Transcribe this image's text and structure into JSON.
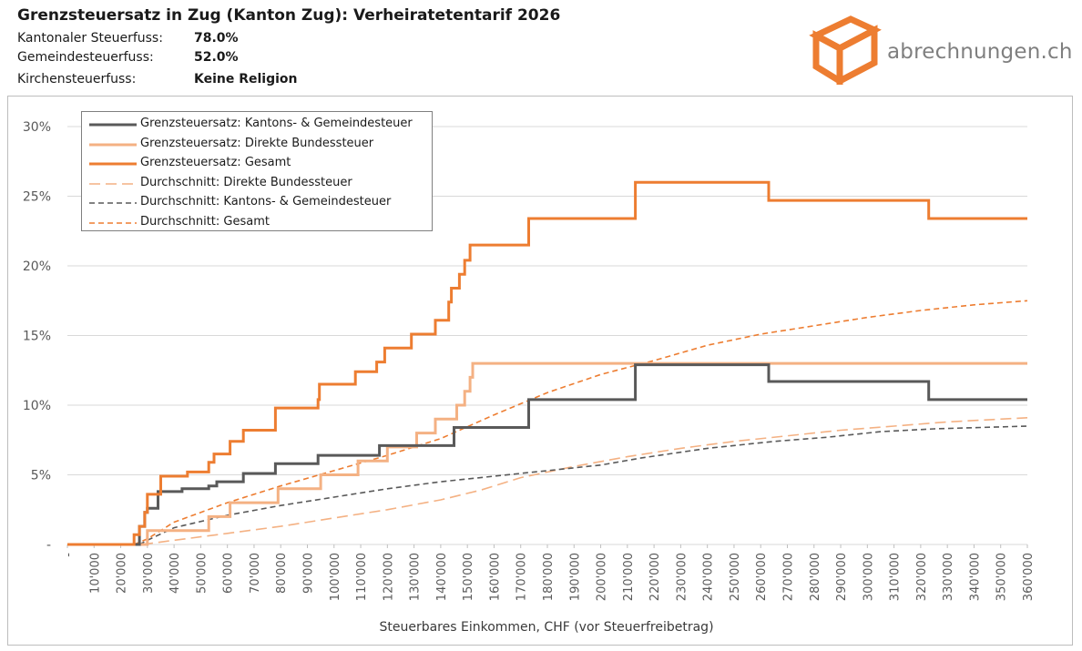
{
  "header": {
    "title": "Grenzsteuersatz in Zug (Kanton Zug): Verheiratetentarif 2026",
    "rows": [
      {
        "label": "Kantonaler Steuerfuss:",
        "value": "78.0%"
      },
      {
        "label": "Gemeindesteuerfuss:",
        "value": "52.0%"
      },
      {
        "label": "Kirchensteuerfuss:",
        "value": "Keine Religion"
      }
    ]
  },
  "logo": {
    "text": "abrechnungen.ch",
    "color": "#ED7D31"
  },
  "chart_data": {
    "type": "line",
    "xlabel": "Steuerbares Einkommen, CHF (vor Steuerfreibetrag)",
    "ylabel": "",
    "xlim": [
      0,
      360000
    ],
    "ylim": [
      0,
      30
    ],
    "y_ticks": [
      {
        "value": 0,
        "label": "-"
      },
      {
        "value": 5,
        "label": "5%"
      },
      {
        "value": 10,
        "label": "10%"
      },
      {
        "value": 15,
        "label": "15%"
      },
      {
        "value": 20,
        "label": "20%"
      },
      {
        "value": 25,
        "label": "25%"
      },
      {
        "value": 30,
        "label": "30%"
      }
    ],
    "x_ticks": [
      {
        "value": 0,
        "label": "-"
      },
      {
        "value": 10000,
        "label": "10'000"
      },
      {
        "value": 20000,
        "label": "20'000"
      },
      {
        "value": 30000,
        "label": "30'000"
      },
      {
        "value": 40000,
        "label": "40'000"
      },
      {
        "value": 50000,
        "label": "50'000"
      },
      {
        "value": 60000,
        "label": "60'000"
      },
      {
        "value": 70000,
        "label": "70'000"
      },
      {
        "value": 80000,
        "label": "80'000"
      },
      {
        "value": 90000,
        "label": "90'000"
      },
      {
        "value": 100000,
        "label": "100'000"
      },
      {
        "value": 110000,
        "label": "110'000"
      },
      {
        "value": 120000,
        "label": "120'000"
      },
      {
        "value": 130000,
        "label": "130'000"
      },
      {
        "value": 140000,
        "label": "140'000"
      },
      {
        "value": 150000,
        "label": "150'000"
      },
      {
        "value": 160000,
        "label": "160'000"
      },
      {
        "value": 170000,
        "label": "170'000"
      },
      {
        "value": 180000,
        "label": "180'000"
      },
      {
        "value": 190000,
        "label": "190'000"
      },
      {
        "value": 200000,
        "label": "200'000"
      },
      {
        "value": 210000,
        "label": "210'000"
      },
      {
        "value": 220000,
        "label": "220'000"
      },
      {
        "value": 230000,
        "label": "230'000"
      },
      {
        "value": 240000,
        "label": "240'000"
      },
      {
        "value": 250000,
        "label": "250'000"
      },
      {
        "value": 260000,
        "label": "260'000"
      },
      {
        "value": 270000,
        "label": "270'000"
      },
      {
        "value": 280000,
        "label": "280'000"
      },
      {
        "value": 290000,
        "label": "290'000"
      },
      {
        "value": 300000,
        "label": "300'000"
      },
      {
        "value": 310000,
        "label": "310'000"
      },
      {
        "value": 320000,
        "label": "320'000"
      },
      {
        "value": 330000,
        "label": "330'000"
      },
      {
        "value": 340000,
        "label": "340'000"
      },
      {
        "value": 350000,
        "label": "350'000"
      },
      {
        "value": 360000,
        "label": "360'000"
      }
    ],
    "grid": "horizontal",
    "legend_position": "top-left",
    "series": [
      {
        "name": "Grenzsteuersatz: Kantons- & Gemeindesteuer",
        "color": "#595959",
        "style": "solid",
        "width": 3,
        "step": true,
        "points": [
          [
            0,
            0
          ],
          [
            26000,
            0
          ],
          [
            27000,
            1.3
          ],
          [
            29000,
            2.3
          ],
          [
            30000,
            2.6
          ],
          [
            33000,
            2.6
          ],
          [
            34000,
            3.8
          ],
          [
            43000,
            4.0
          ],
          [
            53000,
            4.2
          ],
          [
            56000,
            4.5
          ],
          [
            66000,
            5.1
          ],
          [
            78000,
            5.8
          ],
          [
            94000,
            6.4
          ],
          [
            117000,
            7.1
          ],
          [
            131000,
            7.1
          ],
          [
            143000,
            7.1
          ],
          [
            145000,
            8.4
          ],
          [
            173000,
            10.4
          ],
          [
            213000,
            12.9
          ],
          [
            263000,
            11.7
          ],
          [
            323000,
            10.4
          ],
          [
            360000,
            10.4
          ]
        ]
      },
      {
        "name": "Grenzsteuersatz: Direkte Bundessteuer",
        "color": "#F4B183",
        "style": "solid",
        "width": 3,
        "step": true,
        "points": [
          [
            0,
            0
          ],
          [
            29000,
            0
          ],
          [
            30000,
            1.0
          ],
          [
            53000,
            2.0
          ],
          [
            61000,
            3.0
          ],
          [
            79000,
            4.0
          ],
          [
            95000,
            5.0
          ],
          [
            109000,
            6.0
          ],
          [
            120000,
            7.0
          ],
          [
            131000,
            8.0
          ],
          [
            138000,
            9.0
          ],
          [
            146000,
            10.0
          ],
          [
            149000,
            11.0
          ],
          [
            151000,
            12.0
          ],
          [
            152000,
            13.0
          ],
          [
            360000,
            13.0
          ]
        ]
      },
      {
        "name": "Grenzsteuersatz: Gesamt",
        "color": "#ED7D31",
        "style": "solid",
        "width": 3,
        "step": true,
        "points": [
          [
            0,
            0
          ],
          [
            24000,
            0
          ],
          [
            25000,
            0.7
          ],
          [
            27000,
            1.3
          ],
          [
            29000,
            2.3
          ],
          [
            30000,
            3.6
          ],
          [
            35000,
            4.9
          ],
          [
            45000,
            5.2
          ],
          [
            53000,
            5.9
          ],
          [
            55000,
            6.5
          ],
          [
            61000,
            7.4
          ],
          [
            66000,
            8.2
          ],
          [
            78000,
            9.8
          ],
          [
            94000,
            10.4
          ],
          [
            94500,
            11.5
          ],
          [
            108000,
            12.4
          ],
          [
            116000,
            13.1
          ],
          [
            119000,
            14.1
          ],
          [
            129000,
            15.1
          ],
          [
            138000,
            16.1
          ],
          [
            143000,
            17.4
          ],
          [
            144000,
            18.4
          ],
          [
            147000,
            19.4
          ],
          [
            149000,
            20.4
          ],
          [
            151000,
            21.5
          ],
          [
            173000,
            23.4
          ],
          [
            213000,
            26.0
          ],
          [
            263000,
            24.7
          ],
          [
            323000,
            23.4
          ],
          [
            360000,
            23.4
          ]
        ]
      },
      {
        "name": "Durchschnitt: Direkte Bundessteuer",
        "color": "#F4B183",
        "style": "longdash",
        "width": 1.6,
        "step": false,
        "points": [
          [
            28000,
            0
          ],
          [
            40000,
            0.3
          ],
          [
            60000,
            0.8
          ],
          [
            80000,
            1.3
          ],
          [
            100000,
            1.9
          ],
          [
            120000,
            2.5
          ],
          [
            140000,
            3.2
          ],
          [
            155000,
            3.9
          ],
          [
            170000,
            4.8
          ],
          [
            190000,
            5.6
          ],
          [
            210000,
            6.3
          ],
          [
            230000,
            6.9
          ],
          [
            250000,
            7.4
          ],
          [
            270000,
            7.8
          ],
          [
            290000,
            8.2
          ],
          [
            310000,
            8.5
          ],
          [
            330000,
            8.8
          ],
          [
            360000,
            9.1
          ]
        ]
      },
      {
        "name": "Durchschnitt: Kantons- & Gemeindesteuer",
        "color": "#595959",
        "style": "shortdash",
        "width": 1.6,
        "step": false,
        "points": [
          [
            27000,
            0
          ],
          [
            30000,
            0.3
          ],
          [
            40000,
            1.2
          ],
          [
            60000,
            2.1
          ],
          [
            80000,
            2.8
          ],
          [
            100000,
            3.4
          ],
          [
            120000,
            4.0
          ],
          [
            140000,
            4.5
          ],
          [
            160000,
            4.9
          ],
          [
            180000,
            5.3
          ],
          [
            200000,
            5.7
          ],
          [
            215000,
            6.2
          ],
          [
            240000,
            6.9
          ],
          [
            265000,
            7.4
          ],
          [
            285000,
            7.7
          ],
          [
            305000,
            8.1
          ],
          [
            325000,
            8.3
          ],
          [
            360000,
            8.5
          ]
        ]
      },
      {
        "name": "Durchschnitt: Gesamt",
        "color": "#ED7D31",
        "style": "shortdash",
        "width": 1.6,
        "step": false,
        "points": [
          [
            25000,
            0
          ],
          [
            30000,
            0.4
          ],
          [
            40000,
            1.6
          ],
          [
            60000,
            3.0
          ],
          [
            80000,
            4.2
          ],
          [
            100000,
            5.3
          ],
          [
            120000,
            6.4
          ],
          [
            140000,
            7.6
          ],
          [
            160000,
            9.3
          ],
          [
            180000,
            10.9
          ],
          [
            200000,
            12.2
          ],
          [
            220000,
            13.2
          ],
          [
            240000,
            14.3
          ],
          [
            260000,
            15.1
          ],
          [
            280000,
            15.7
          ],
          [
            300000,
            16.3
          ],
          [
            320000,
            16.8
          ],
          [
            340000,
            17.2
          ],
          [
            360000,
            17.5
          ]
        ]
      }
    ]
  }
}
